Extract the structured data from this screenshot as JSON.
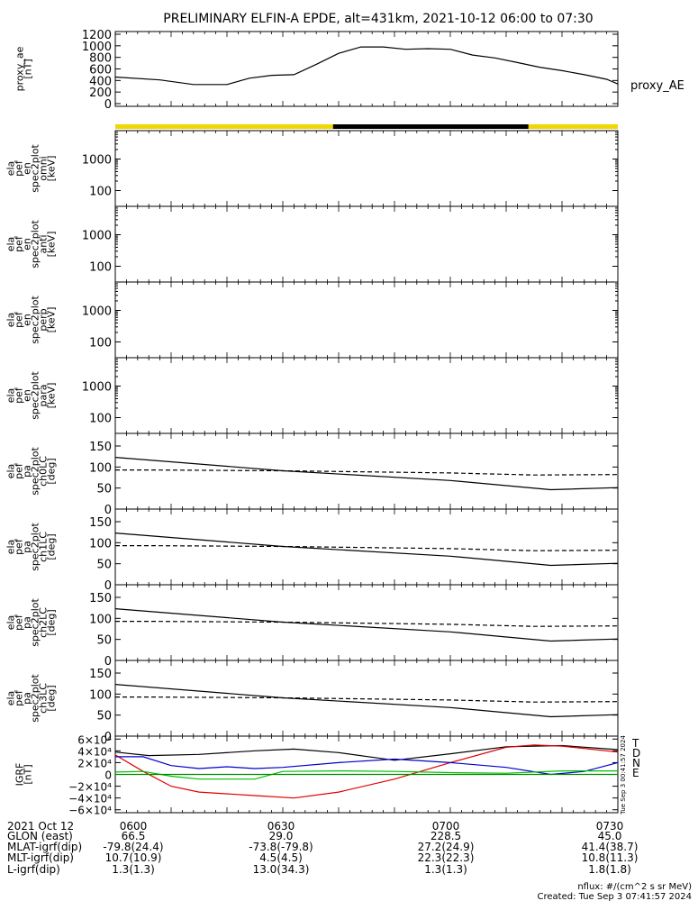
{
  "title": "PRELIMINARY ELFIN-A EPDE, alt=431km, 2021-10-12 06:00 to 07:30",
  "chart_data": [
    {
      "id": "proxy_ae",
      "type": "line",
      "ylabel_lines": [
        "proxy_ae",
        "[nT]"
      ],
      "ylim": [
        0,
        1200
      ],
      "yticks": [
        0,
        200,
        400,
        600,
        800,
        1000,
        1200
      ],
      "legend": "proxy_AE",
      "x_minutes": [
        0,
        8,
        14,
        20,
        24,
        28,
        32,
        36,
        40,
        44,
        48,
        52,
        56,
        60,
        64,
        68,
        72,
        76,
        80,
        84,
        88,
        90
      ],
      "y": [
        460,
        410,
        330,
        330,
        440,
        490,
        500,
        680,
        870,
        980,
        980,
        940,
        950,
        940,
        840,
        790,
        710,
        630,
        570,
        500,
        420,
        340
      ]
    },
    {
      "id": "bar",
      "type": "area",
      "segments": [
        {
          "start": 0,
          "end": 39,
          "color": "#f2d600"
        },
        {
          "start": 39,
          "end": 74,
          "color": "#000000"
        },
        {
          "start": 74,
          "end": 90,
          "color": "#f2d600"
        }
      ]
    },
    {
      "id": "omni",
      "type": "heatmap",
      "ylabel_lines": [
        "ela",
        "pef",
        "en",
        "spec2plot",
        "omni",
        "[keV]"
      ],
      "log": true,
      "yticks": [
        100,
        1000
      ]
    },
    {
      "id": "anti",
      "type": "heatmap",
      "ylabel_lines": [
        "ela",
        "pef",
        "en",
        "spec2plot",
        "anti",
        "[keV]"
      ],
      "log": true,
      "yticks": [
        100,
        1000
      ]
    },
    {
      "id": "perp",
      "type": "heatmap",
      "ylabel_lines": [
        "ela",
        "pef",
        "en",
        "spec2plot",
        "perp",
        "[keV]"
      ],
      "log": true,
      "yticks": [
        100,
        1000
      ]
    },
    {
      "id": "para",
      "type": "heatmap",
      "ylabel_lines": [
        "ela",
        "pef",
        "en",
        "spec2plot",
        "para",
        "[keV]"
      ],
      "log": true,
      "yticks": [
        100,
        1000
      ]
    },
    {
      "id": "ch0LC",
      "type": "line",
      "ylabel_lines": [
        "ela",
        "pef",
        "pa",
        "spec2plot",
        "ch0LC",
        "[deg]"
      ],
      "ylim": [
        0,
        180
      ],
      "yticks": [
        0,
        50,
        100,
        150
      ],
      "solid_x": [
        0,
        30,
        60,
        78,
        90
      ],
      "solid_y": [
        123,
        91,
        68,
        46,
        51
      ],
      "dash_x": [
        0,
        6,
        30,
        60,
        75,
        90
      ],
      "dash_y": [
        93,
        93,
        91,
        86,
        81,
        82
      ]
    },
    {
      "id": "ch1LC",
      "type": "line",
      "ylabel_lines": [
        "ela",
        "pef",
        "pa",
        "spec2plot",
        "ch1LC",
        "[deg]"
      ],
      "ylim": [
        0,
        180
      ],
      "yticks": [
        0,
        50,
        100,
        150
      ],
      "solid_x": [
        0,
        30,
        60,
        78,
        90
      ],
      "solid_y": [
        123,
        91,
        68,
        46,
        51
      ],
      "dash_x": [
        0,
        6,
        30,
        60,
        75,
        90
      ],
      "dash_y": [
        93,
        93,
        91,
        86,
        81,
        82
      ]
    },
    {
      "id": "ch2LC",
      "type": "line",
      "ylabel_lines": [
        "ela",
        "pef",
        "pa",
        "spec2plot",
        "ch2LC",
        "[deg]"
      ],
      "ylim": [
        0,
        180
      ],
      "yticks": [
        0,
        50,
        100,
        150
      ],
      "solid_x": [
        0,
        30,
        60,
        78,
        90
      ],
      "solid_y": [
        123,
        91,
        68,
        46,
        51
      ],
      "dash_x": [
        0,
        6,
        30,
        60,
        75,
        90
      ],
      "dash_y": [
        93,
        93,
        91,
        86,
        81,
        82
      ]
    },
    {
      "id": "ch3LC",
      "type": "line",
      "ylabel_lines": [
        "ela",
        "pef",
        "pa",
        "spec2plot",
        "ch3LC",
        "[deg]"
      ],
      "ylim": [
        0,
        180
      ],
      "yticks": [
        0,
        50,
        100,
        150
      ],
      "solid_x": [
        0,
        30,
        60,
        78,
        90
      ],
      "solid_y": [
        123,
        91,
        68,
        46,
        51
      ],
      "dash_x": [
        0,
        6,
        30,
        60,
        75,
        90
      ],
      "dash_y": [
        93,
        93,
        91,
        86,
        81,
        82
      ]
    },
    {
      "id": "grf",
      "type": "line",
      "ylabel_lines": [
        "IGRF",
        "[nT]"
      ],
      "ylim": [
        -65000,
        65000
      ],
      "yticks": [
        -60000,
        -40000,
        -20000,
        0,
        20000,
        40000,
        60000
      ],
      "ytick_labels": [
        "−6×10⁴",
        "−4×10⁴",
        "−2×10⁴",
        "0",
        "2×10⁴",
        "4×10⁴",
        "6×10⁴"
      ],
      "legend": [
        "T",
        "D",
        "N",
        "E"
      ],
      "series": [
        {
          "name": "T",
          "color": "#000000",
          "x": [
            0,
            6,
            15,
            25,
            32,
            40,
            50,
            60,
            70,
            80,
            90
          ],
          "y": [
            38000,
            32000,
            34000,
            40000,
            43000,
            37000,
            24000,
            35000,
            47000,
            49000,
            42000
          ]
        },
        {
          "name": "D",
          "color": "#e00000",
          "x": [
            0,
            5,
            10,
            15,
            25,
            32,
            40,
            50,
            60,
            70,
            75,
            80,
            90
          ],
          "y": [
            33000,
            5000,
            -20000,
            -30000,
            -36000,
            -40000,
            -30000,
            -8000,
            20000,
            46000,
            50000,
            48000,
            38000
          ]
        },
        {
          "name": "N",
          "color": "#0000d0",
          "x": [
            0,
            5,
            10,
            15,
            20,
            25,
            30,
            40,
            50,
            60,
            70,
            78,
            84,
            90
          ],
          "y": [
            30000,
            30000,
            15000,
            10000,
            13000,
            10000,
            12000,
            20000,
            26000,
            20000,
            12000,
            0,
            5000,
            20000
          ]
        },
        {
          "name": "E",
          "color": "#00c000",
          "x": [
            0,
            5,
            10,
            15,
            25,
            30,
            40,
            50,
            60,
            70,
            80,
            90
          ],
          "y": [
            4000,
            5000,
            -3000,
            -8000,
            -8000,
            5000,
            6000,
            5000,
            3000,
            2000,
            6000,
            6000
          ]
        },
        {
          "name": "zero",
          "color": "#008800",
          "x": [
            0,
            90
          ],
          "y": [
            0,
            0
          ]
        }
      ]
    }
  ],
  "xticks": [
    "0600",
    "0630",
    "0700",
    "0730"
  ],
  "xtick_minutes": [
    0,
    30,
    60,
    90
  ],
  "annotations": {
    "rows": [
      {
        "label": "2021 Oct 12",
        "values": [
          "0600",
          "0630",
          "0700",
          "0730"
        ]
      },
      {
        "label": "GLON (east)",
        "values": [
          "66.5",
          "29.0",
          "228.5",
          "45.0"
        ]
      },
      {
        "label": "MLAT-igrf(dip)",
        "values": [
          "-79.8(24.4)",
          "-73.8(-79.8)",
          "27.2(24.9)",
          "41.4(38.7)"
        ]
      },
      {
        "label": "MLT-igrf(dip)",
        "values": [
          "10.7(10.9)",
          "4.5(4.5)",
          "22.3(22.3)",
          "10.8(11.3)"
        ]
      },
      {
        "label": "L-igrf(dip)",
        "values": [
          "1.3(1.3)",
          "13.0(34.3)",
          "1.3(1.3)",
          "1.8(1.8)"
        ]
      }
    ],
    "nflux": "nflux: #/(cm^2 s sr MeV)",
    "created": "Created: Tue Sep  3 07:41:57 2024",
    "side_stamp": "Tue Sep  3 00:41:57 2024"
  }
}
